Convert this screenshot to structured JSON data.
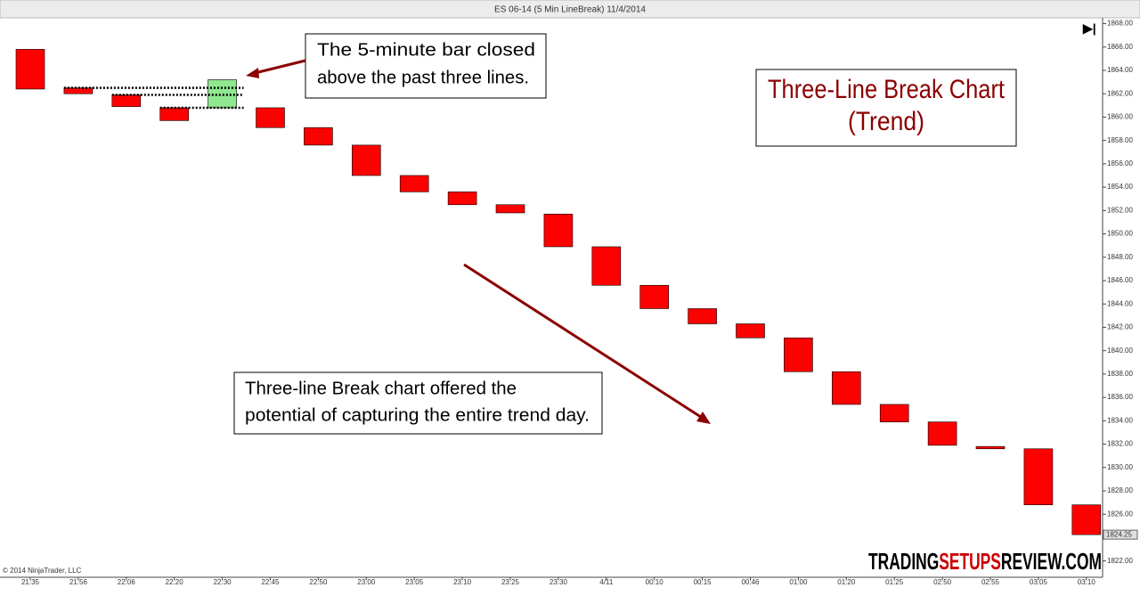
{
  "chart_data": {
    "type": "line-break",
    "title": "ES 06-14 (5 Min LineBreak)  11/4/2014",
    "categories": [
      "21:35",
      "21:56",
      "22:06",
      "22:20",
      "22:30",
      "22:45",
      "22:50",
      "23:00",
      "23:05",
      "23:10",
      "23:25",
      "23:30",
      "4/11",
      "00:10",
      "00:15",
      "00:46",
      "01:00",
      "01:20",
      "01:25",
      "02:50",
      "02:55",
      "03:05",
      "03:10"
    ],
    "open": [
      1865.8,
      1862.5,
      1861.9,
      1860.8,
      1860.8,
      1860.8,
      1859.1,
      1857.6,
      1855.0,
      1853.6,
      1852.5,
      1851.7,
      1848.9,
      1845.6,
      1843.6,
      1842.3,
      1841.1,
      1838.2,
      1835.4,
      1833.9,
      1831.8,
      1831.6,
      1826.8
    ],
    "close": [
      1862.4,
      1862.0,
      1860.9,
      1859.7,
      1863.2,
      1859.1,
      1857.6,
      1855.0,
      1853.6,
      1852.5,
      1851.8,
      1848.9,
      1845.6,
      1843.6,
      1842.3,
      1841.1,
      1838.2,
      1835.4,
      1833.9,
      1831.9,
      1831.6,
      1826.8,
      1824.25
    ],
    "up_color": "#8fe88f",
    "down_color": "#ff0000",
    "ylim": [
      1820.6,
      1868.5
    ],
    "yticks": [
      {
        "value": 1822,
        "label": "1822.00"
      },
      {
        "value": 1824,
        "label": "1824.00"
      },
      {
        "value": 1826,
        "label": "1826.00"
      },
      {
        "value": 1828,
        "label": "1828.00"
      },
      {
        "value": 1830,
        "label": "1830.00"
      },
      {
        "value": 1832,
        "label": "1832.00"
      },
      {
        "value": 1834,
        "label": "1834.00"
      },
      {
        "value": 1836,
        "label": "1836.00"
      },
      {
        "value": 1838,
        "label": "1838.00"
      },
      {
        "value": 1840,
        "label": "1840.00"
      },
      {
        "value": 1842,
        "label": "1842.00"
      },
      {
        "value": 1844,
        "label": "1844.00"
      },
      {
        "value": 1846,
        "label": "1846.00"
      },
      {
        "value": 1848,
        "label": "1848.00"
      },
      {
        "value": 1850,
        "label": "1850.00"
      },
      {
        "value": 1852,
        "label": "1852.00"
      },
      {
        "value": 1854,
        "label": "1854.00"
      },
      {
        "value": 1856,
        "label": "1856.00"
      },
      {
        "value": 1858,
        "label": "1858.00"
      },
      {
        "value": 1860,
        "label": "1860.00"
      },
      {
        "value": 1862,
        "label": "1862.00"
      },
      {
        "value": 1864,
        "label": "1864.00"
      },
      {
        "value": 1866,
        "label": "1866.00"
      },
      {
        "value": 1868,
        "label": "1868.00"
      }
    ],
    "last_price": 1824.25,
    "annotations": [
      [
        "The 5-minute bar closed",
        "above the past three lines."
      ],
      [
        "Three-line Break chart offered the",
        "potential of capturing the entire trend day."
      ],
      [
        "Three-Line Break Chart",
        "(Trend)"
      ]
    ],
    "copyright": "© 2014 NinjaTrader, LLC",
    "watermark": [
      "TRADING",
      "SETUPS",
      "REVIEW.COM"
    ]
  }
}
